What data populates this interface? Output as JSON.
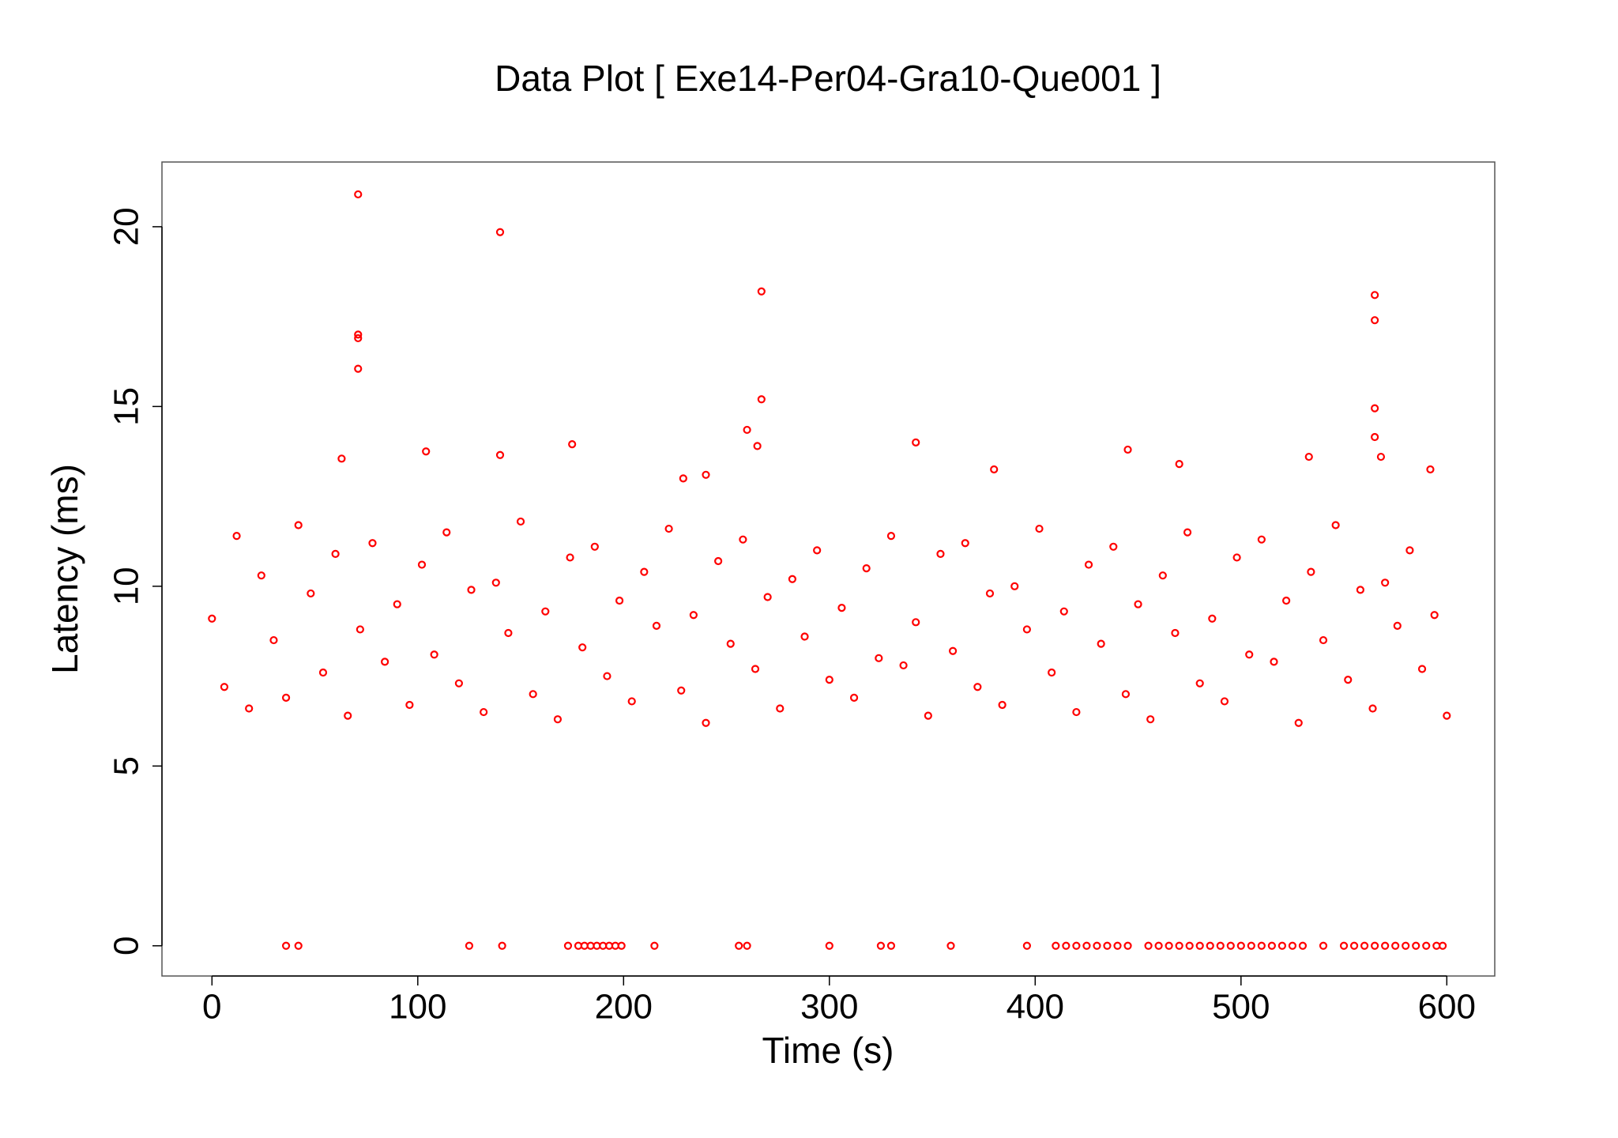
{
  "chart_data": {
    "type": "scatter",
    "title": "Data Plot [ Exe14-Per04-Gra10-Que001 ]",
    "x_label": "Time (s)",
    "y_label": "Latency (ms)",
    "color": "#ff0000",
    "xlim": [
      -24.3,
      623.3
    ],
    "ylim": [
      -0.84,
      21.8
    ],
    "xticks": [
      0,
      100,
      200,
      300,
      400,
      500,
      600
    ],
    "yticks": [
      0,
      5,
      10,
      15,
      20
    ],
    "x": [
      71,
      140,
      267,
      71,
      71,
      71,
      267,
      260,
      565,
      565,
      565,
      565,
      568,
      342,
      175,
      104,
      445,
      533,
      592,
      265,
      140,
      63,
      229,
      240,
      380,
      470,
      36,
      42,
      125,
      141,
      173,
      178,
      181,
      184,
      187,
      190,
      193,
      196,
      199,
      215,
      256,
      260,
      300,
      325,
      330,
      359,
      396,
      410,
      415,
      420,
      425,
      430,
      435,
      440,
      445,
      455,
      460,
      465,
      470,
      475,
      480,
      485,
      490,
      495,
      500,
      505,
      510,
      515,
      520,
      525,
      530,
      540,
      550,
      555,
      560,
      565,
      570,
      575,
      580,
      585,
      590,
      595,
      598,
      0,
      6,
      12,
      18,
      24,
      30,
      36,
      42,
      48,
      54,
      60,
      66,
      72,
      78,
      84,
      90,
      96,
      102,
      108,
      114,
      120,
      126,
      132,
      138,
      144,
      150,
      156,
      162,
      168,
      174,
      180,
      186,
      192,
      198,
      204,
      210,
      216,
      222,
      228,
      234,
      240,
      246,
      252,
      258,
      264,
      270,
      276,
      282,
      288,
      294,
      300,
      306,
      312,
      318,
      324,
      330,
      336,
      342,
      348,
      354,
      360,
      366,
      372,
      378,
      384,
      390,
      396,
      402,
      408,
      414,
      420,
      426,
      432,
      438,
      444,
      450,
      456,
      462,
      468,
      474,
      480,
      486,
      492,
      498,
      504,
      510,
      516,
      522,
      528,
      534,
      540,
      546,
      552,
      558,
      564,
      570,
      576,
      582,
      588,
      594,
      600
    ],
    "values": [
      20.9,
      19.85,
      18.2,
      17.0,
      16.9,
      16.05,
      15.2,
      14.35,
      18.1,
      17.4,
      14.95,
      14.15,
      13.6,
      14.0,
      13.95,
      13.75,
      13.8,
      13.6,
      13.25,
      13.9,
      13.65,
      13.55,
      13.0,
      13.1,
      13.25,
      13.4,
      0,
      0,
      0,
      0,
      0,
      0,
      0,
      0,
      0,
      0,
      0,
      0,
      0,
      0,
      0,
      0,
      0,
      0,
      0,
      0,
      0,
      0,
      0,
      0,
      0,
      0,
      0,
      0,
      0,
      0,
      0,
      0,
      0,
      0,
      0,
      0,
      0,
      0,
      0,
      0,
      0,
      0,
      0,
      0,
      0,
      0,
      0,
      0,
      0,
      0,
      0,
      0,
      0,
      0,
      0,
      0,
      0,
      9.1,
      7.2,
      11.4,
      6.6,
      10.3,
      8.5,
      6.9,
      11.7,
      9.8,
      7.6,
      10.9,
      6.4,
      8.8,
      11.2,
      7.9,
      9.5,
      6.7,
      10.6,
      8.1,
      11.5,
      7.3,
      9.9,
      6.5,
      10.1,
      8.7,
      11.8,
      7.0,
      9.3,
      6.3,
      10.8,
      8.3,
      11.1,
      7.5,
      9.6,
      6.8,
      10.4,
      8.9,
      11.6,
      7.1,
      9.2,
      6.2,
      10.7,
      8.4,
      11.3,
      7.7,
      9.7,
      6.6,
      10.2,
      8.6,
      11.0,
      7.4,
      9.4,
      6.9,
      10.5,
      8.0,
      11.4,
      7.8,
      9.0,
      6.4,
      10.9,
      8.2,
      11.2,
      7.2,
      9.8,
      6.7,
      10.0,
      8.8,
      11.6,
      7.6,
      9.3,
      6.5,
      10.6,
      8.4,
      11.1,
      7.0,
      9.5,
      6.3,
      10.3,
      8.7,
      11.5,
      7.3,
      9.1,
      6.8,
      10.8,
      8.1,
      11.3,
      7.9,
      9.6,
      6.2,
      10.4,
      8.5,
      11.7,
      7.4,
      9.9,
      6.6,
      10.1,
      8.9,
      11.0,
      7.7,
      9.2,
      6.4
    ]
  }
}
